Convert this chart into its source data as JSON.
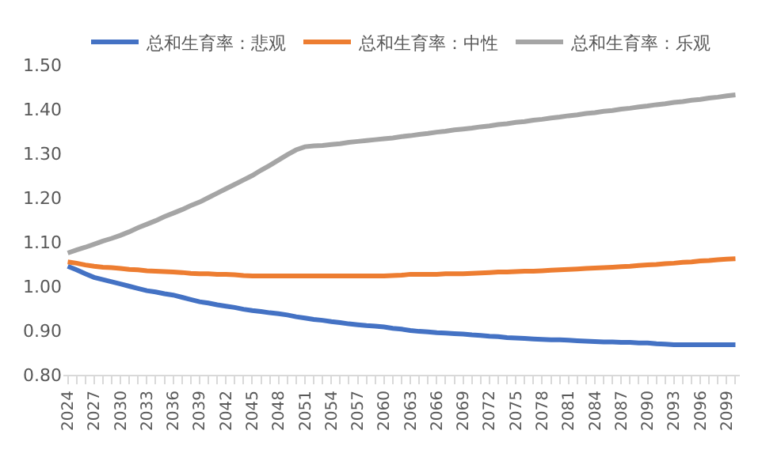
{
  "chart_data": {
    "type": "line",
    "categories": [
      "2024",
      null,
      null,
      "2027",
      null,
      null,
      "2030",
      null,
      null,
      "2033",
      null,
      null,
      "2036",
      null,
      null,
      "2039",
      null,
      null,
      "2042",
      null,
      null,
      "2045",
      null,
      null,
      "2048",
      null,
      null,
      "2051",
      null,
      null,
      "2054",
      null,
      null,
      "2057",
      null,
      null,
      "2060",
      null,
      null,
      "2063",
      null,
      null,
      "2066",
      null,
      null,
      "2069",
      null,
      null,
      "2072",
      null,
      null,
      "2075",
      null,
      null,
      "2078",
      null,
      null,
      "2081",
      null,
      null,
      "2084",
      null,
      null,
      "2087",
      null,
      null,
      "2090",
      null,
      null,
      "2093",
      null,
      null,
      "2096",
      null,
      null,
      "2099",
      null
    ],
    "series": [
      {
        "name": "总和生育率：悲观",
        "color": "#4472c4",
        "values": [
          1.045,
          1.037,
          1.028,
          1.02,
          1.015,
          1.01,
          1.005,
          1.0,
          0.995,
          0.99,
          0.987,
          0.983,
          0.98,
          0.975,
          0.97,
          0.965,
          0.962,
          0.958,
          0.955,
          0.952,
          0.948,
          0.945,
          0.943,
          0.94,
          0.938,
          0.935,
          0.931,
          0.928,
          0.925,
          0.923,
          0.92,
          0.918,
          0.915,
          0.913,
          0.911,
          0.91,
          0.908,
          0.905,
          0.903,
          0.9,
          0.898,
          0.897,
          0.895,
          0.894,
          0.893,
          0.892,
          0.89,
          0.889,
          0.887,
          0.886,
          0.884,
          0.883,
          0.882,
          0.881,
          0.88,
          0.879,
          0.879,
          0.878,
          0.877,
          0.876,
          0.875,
          0.874,
          0.874,
          0.873,
          0.873,
          0.872,
          0.872,
          0.87,
          0.869,
          0.868,
          0.868,
          0.868,
          0.868,
          0.868,
          0.868,
          0.868,
          0.868
        ]
      },
      {
        "name": "总和生育率：中性",
        "color": "#ed7d31",
        "values": [
          1.055,
          1.052,
          1.048,
          1.045,
          1.043,
          1.042,
          1.04,
          1.038,
          1.037,
          1.035,
          1.034,
          1.033,
          1.032,
          1.031,
          1.029,
          1.028,
          1.028,
          1.027,
          1.027,
          1.026,
          1.024,
          1.023,
          1.023,
          1.023,
          1.023,
          1.023,
          1.023,
          1.023,
          1.023,
          1.023,
          1.023,
          1.023,
          1.023,
          1.023,
          1.023,
          1.023,
          1.023,
          1.024,
          1.025,
          1.027,
          1.027,
          1.027,
          1.027,
          1.028,
          1.028,
          1.028,
          1.029,
          1.03,
          1.031,
          1.032,
          1.032,
          1.033,
          1.034,
          1.034,
          1.035,
          1.036,
          1.037,
          1.038,
          1.039,
          1.04,
          1.041,
          1.042,
          1.043,
          1.044,
          1.045,
          1.047,
          1.048,
          1.049,
          1.051,
          1.052,
          1.054,
          1.055,
          1.057,
          1.058,
          1.06,
          1.061,
          1.062
        ]
      },
      {
        "name": "总和生育率：乐观",
        "color": "#a5a5a5",
        "values": [
          1.075,
          1.082,
          1.088,
          1.095,
          1.102,
          1.108,
          1.115,
          1.123,
          1.132,
          1.14,
          1.148,
          1.157,
          1.165,
          1.173,
          1.182,
          1.19,
          1.2,
          1.21,
          1.22,
          1.23,
          1.24,
          1.25,
          1.262,
          1.273,
          1.285,
          1.297,
          1.308,
          1.315,
          1.317,
          1.318,
          1.32,
          1.322,
          1.325,
          1.327,
          1.329,
          1.331,
          1.333,
          1.335,
          1.338,
          1.34,
          1.343,
          1.345,
          1.348,
          1.35,
          1.353,
          1.355,
          1.357,
          1.36,
          1.362,
          1.365,
          1.367,
          1.37,
          1.372,
          1.375,
          1.377,
          1.38,
          1.382,
          1.385,
          1.387,
          1.39,
          1.392,
          1.395,
          1.397,
          1.4,
          1.402,
          1.405,
          1.407,
          1.41,
          1.412,
          1.415,
          1.417,
          1.42,
          1.422,
          1.425,
          1.427,
          1.43,
          1.432
        ]
      }
    ],
    "ylim": [
      0.8,
      1.5
    ],
    "yticks": [
      {
        "value": 0.8,
        "label": "0.80"
      },
      {
        "value": 0.9,
        "label": "0.90"
      },
      {
        "value": 1.0,
        "label": "1.00"
      },
      {
        "value": 1.1,
        "label": "1.10"
      },
      {
        "value": 1.2,
        "label": "1.20"
      },
      {
        "value": 1.3,
        "label": "1.30"
      },
      {
        "value": 1.4,
        "label": "1.40"
      },
      {
        "value": 1.5,
        "label": "1.50"
      }
    ],
    "legend": "top",
    "marker": "none",
    "line_style": "solid"
  }
}
